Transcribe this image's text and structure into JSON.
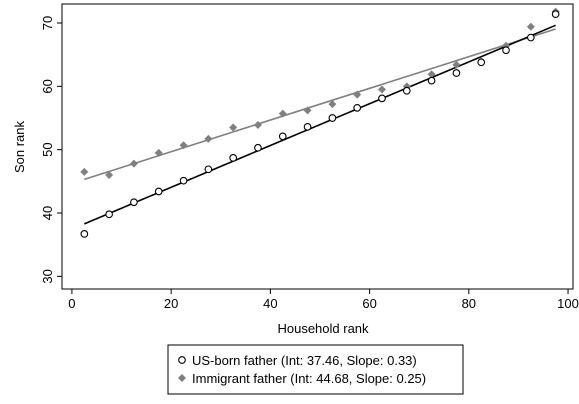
{
  "chart_data": {
    "type": "scatter",
    "title": "",
    "xlabel": "Household rank",
    "ylabel": "Son rank",
    "xlim": [
      -2,
      101
    ],
    "ylim": [
      28,
      73
    ],
    "x_ticks": [
      0,
      20,
      40,
      60,
      80,
      100
    ],
    "y_ticks": [
      30,
      40,
      50,
      60,
      70
    ],
    "grid": false,
    "legend_position": "bottom",
    "series": [
      {
        "name": "US-born father (Int: 37.46, Slope: 0.33)",
        "marker": "hollow-circle",
        "color": "#000000",
        "x": [
          2.5,
          7.5,
          12.5,
          17.5,
          22.5,
          27.5,
          32.5,
          37.5,
          42.5,
          47.5,
          52.5,
          57.5,
          62.5,
          67.5,
          72.5,
          77.5,
          82.5,
          87.5,
          92.5,
          97.5
        ],
        "y": [
          36.7,
          39.8,
          41.7,
          43.4,
          45.1,
          46.9,
          48.7,
          50.3,
          52.1,
          53.6,
          55.0,
          56.6,
          58.1,
          59.3,
          60.9,
          62.1,
          63.8,
          65.7,
          67.7,
          71.4
        ],
        "fit": {
          "intercept": 37.46,
          "slope": 0.33
        }
      },
      {
        "name": "Immigrant father (Int: 44.68, Slope: 0.25)",
        "marker": "diamond",
        "color": "#808080",
        "x": [
          2.5,
          7.5,
          12.5,
          17.5,
          22.5,
          27.5,
          32.5,
          37.5,
          42.5,
          47.5,
          52.5,
          57.5,
          62.5,
          67.5,
          72.5,
          77.5,
          82.5,
          87.5,
          92.5,
          97.5
        ],
        "y": [
          46.5,
          46.0,
          47.8,
          49.5,
          50.7,
          51.7,
          53.5,
          53.9,
          55.7,
          56.2,
          57.2,
          58.7,
          59.5,
          60.0,
          61.9,
          63.4,
          63.9,
          66.4,
          69.4,
          71.8
        ],
        "fit": {
          "intercept": 44.68,
          "slope": 0.25
        }
      }
    ]
  }
}
